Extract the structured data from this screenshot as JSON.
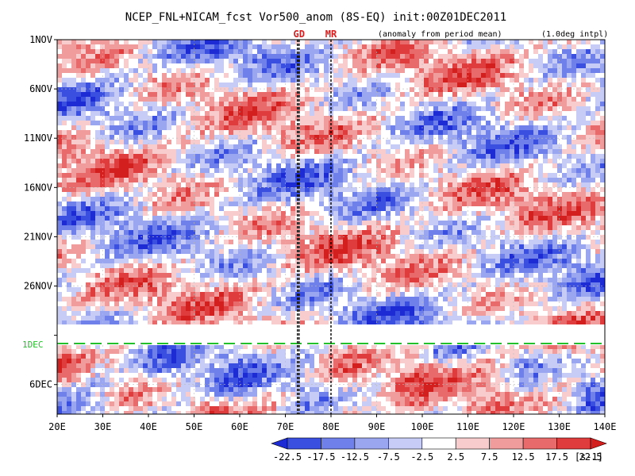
{
  "chart_data": {
    "type": "heatmap",
    "title": "NCEP_FNL+NICAM_fcst Vor500_anom (8S-EQ) init:00Z01DEC2011",
    "note_left": "(anomaly from period mean)",
    "note_right": "(1.0deg intpl)",
    "x_ticks": [
      "20E",
      "30E",
      "40E",
      "50E",
      "60E",
      "70E",
      "80E",
      "90E",
      "100E",
      "110E",
      "120E",
      "130E",
      "140E"
    ],
    "x_range": [
      20,
      140
    ],
    "y_ticks": [
      "1NOV",
      "6NOV",
      "11NOV",
      "16NOV",
      "21NOV",
      "26NOV",
      "1DEC",
      "6DEC"
    ],
    "y_range_days": [
      1,
      39
    ],
    "markers": [
      {
        "label": "GD",
        "lon": 73
      },
      {
        "label": "MR",
        "lon": 80
      }
    ],
    "forecast_start_label": "1DEC",
    "colorbar": {
      "labels": [
        "-22.5",
        "-17.5",
        "-12.5",
        "-7.5",
        "-2.5",
        "2.5",
        "7.5",
        "12.5",
        "17.5",
        "22.5"
      ],
      "unit": "[s-1]",
      "colors": [
        "#1d2bd4",
        "#3a4fe0",
        "#6f80ea",
        "#9aa6f0",
        "#c6ccf6",
        "#ffffff",
        "#f8cccc",
        "#f19c9c",
        "#e86a6a",
        "#df3d3d",
        "#d41f1f"
      ]
    },
    "grid": true
  }
}
